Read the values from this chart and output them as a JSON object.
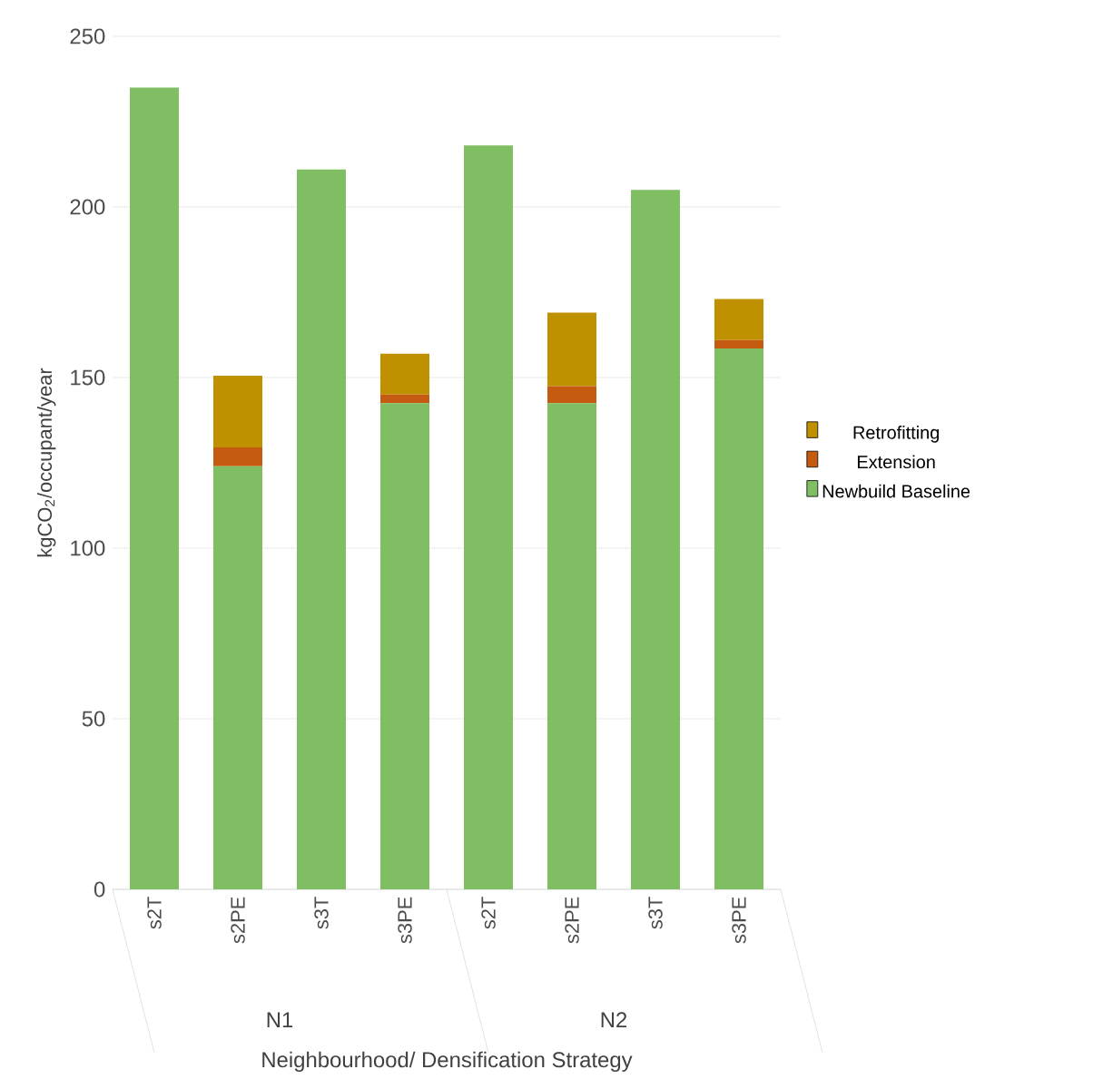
{
  "chart_data": {
    "type": "bar",
    "stacked": true,
    "xlabel": "Neighbourhood/ Densification Strategy",
    "ylabel": "kgCO$_{2}$/occupant/year",
    "categories": [
      "s2T",
      "s2PE",
      "s3T",
      "s3PE",
      "s2T",
      "s2PE",
      "s3T",
      "s3PE"
    ],
    "series": [
      {
        "name": "Newbuild Baseline",
        "color": "#7fbe62",
        "values": [
          235,
          124,
          211,
          142.5,
          218,
          142.5,
          205,
          158.5
        ]
      },
      {
        "name": "Extension",
        "color": "#c55a11",
        "values": [
          0,
          5.5,
          0,
          2.5,
          0,
          5,
          0,
          2.5
        ]
      },
      {
        "name": "Retrofitting",
        "color": "#bf9000",
        "values": [
          0,
          21,
          0,
          12,
          0,
          21.5,
          0,
          12
        ]
      }
    ],
    "annotations": [
      "N1",
      "N2"
    ],
    "ylim": [
      0,
      250
    ],
    "yticks": [
      0,
      50,
      100,
      150,
      200,
      250
    ],
    "grid": "y",
    "legend": "right"
  }
}
